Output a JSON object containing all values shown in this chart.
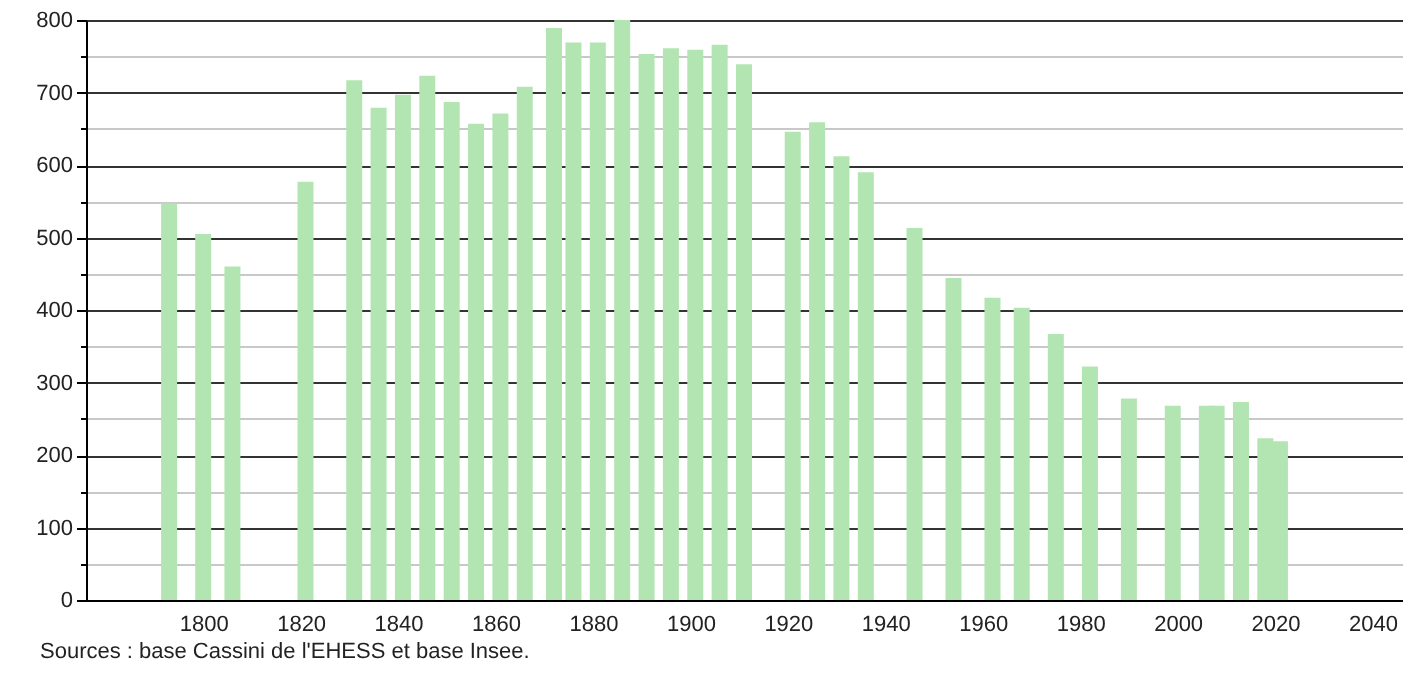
{
  "chart_data": {
    "type": "bar",
    "x": [
      1793,
      1800,
      1806,
      1821,
      1831,
      1836,
      1841,
      1846,
      1851,
      1856,
      1861,
      1866,
      1872,
      1876,
      1881,
      1886,
      1891,
      1896,
      1901,
      1906,
      1911,
      1921,
      1926,
      1931,
      1936,
      1946,
      1954,
      1962,
      1968,
      1975,
      1982,
      1990,
      1999,
      2006,
      2008,
      2013,
      2018,
      2021
    ],
    "values": [
      547,
      505,
      460,
      577,
      717,
      679,
      697,
      723,
      687,
      657,
      671,
      708,
      789,
      769,
      769,
      800,
      753,
      761,
      759,
      766,
      739,
      646,
      659,
      612,
      590,
      513,
      444,
      417,
      403,
      367,
      322,
      278,
      268,
      268,
      268,
      273,
      223,
      219
    ],
    "color": "#b3e5b3",
    "xlim": [
      1778,
      2044
    ],
    "xticks": [
      1800,
      1820,
      1840,
      1860,
      1880,
      1900,
      1920,
      1940,
      1960,
      1980,
      2000,
      2020,
      2040
    ],
    "ylim": [
      0,
      800
    ],
    "yticks": [
      0,
      {
        "value": 50,
        "label": null
      },
      100,
      {
        "value": 150,
        "label": null
      },
      200,
      {
        "value": 250,
        "label": null
      },
      300,
      {
        "value": 350,
        "label": null
      },
      400,
      {
        "value": 450,
        "label": null
      },
      500,
      {
        "value": 550,
        "label": null
      },
      600,
      {
        "value": 650,
        "label": null
      },
      700,
      {
        "value": 750,
        "label": null
      },
      800
    ],
    "grid": "y",
    "annotations": [
      "Sources : base Cassini de l'EHESS et base Insee."
    ]
  }
}
